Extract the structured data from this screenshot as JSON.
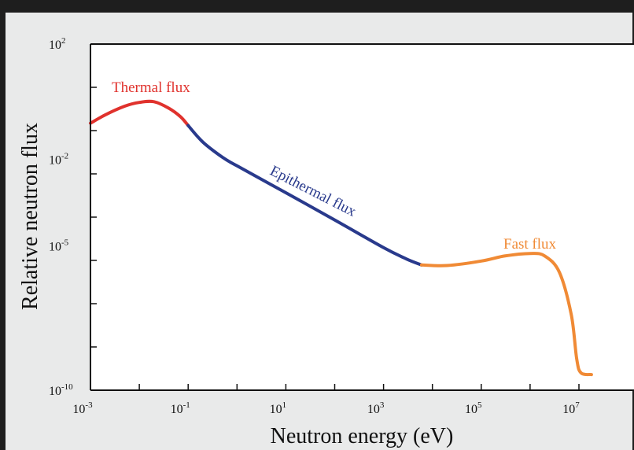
{
  "chart_data": {
    "type": "line",
    "title": "",
    "xlabel": "Neutron energy (eV)",
    "ylabel": "Relative neutron flux",
    "x_scale": "log",
    "y_scale": "log",
    "xlim": [
      0.001,
      30000000
    ],
    "ylim": [
      1e-10,
      100
    ],
    "grid": false,
    "x_ticks": [
      {
        "base": "10",
        "exp": "-3",
        "value": 0.001
      },
      {
        "base": "10",
        "exp": "-1",
        "value": 0.1
      },
      {
        "base": "10",
        "exp": "1",
        "value": 10
      },
      {
        "base": "10",
        "exp": "3",
        "value": 1000
      },
      {
        "base": "10",
        "exp": "5",
        "value": 100000
      },
      {
        "base": "10",
        "exp": "7",
        "value": 10000000
      }
    ],
    "y_ticks": [
      {
        "base": "10",
        "exp": "2",
        "value": 100
      },
      {
        "base": "10",
        "exp": "-2",
        "value": 0.01
      },
      {
        "base": "10",
        "exp": "-5",
        "value": 1e-05
      },
      {
        "base": "10",
        "exp": "-10",
        "value": 1e-10
      }
    ],
    "series": [
      {
        "name": "Thermal flux",
        "color": "#e0322d",
        "points": [
          [
            0.001,
            0.18
          ],
          [
            0.002,
            0.35
          ],
          [
            0.005,
            0.7
          ],
          [
            0.01,
            0.95
          ],
          [
            0.02,
            1.0
          ],
          [
            0.04,
            0.6
          ],
          [
            0.07,
            0.3
          ],
          [
            0.1,
            0.15
          ]
        ]
      },
      {
        "name": "Epithermal flux",
        "color": "#293a8c",
        "points": [
          [
            0.1,
            0.15
          ],
          [
            0.2,
            0.04
          ],
          [
            0.5,
            0.012
          ],
          [
            1,
            0.006
          ],
          [
            10,
            0.0007
          ],
          [
            100,
            8e-05
          ],
          [
            1000,
            8.8e-06
          ],
          [
            3000,
            3.5e-06
          ],
          [
            6000,
            2.2e-06
          ]
        ]
      },
      {
        "name": "Fast flux",
        "color": "#f08a35",
        "points": [
          [
            6000,
            2.2e-06
          ],
          [
            20000,
            2.1e-06
          ],
          [
            100000,
            3e-06
          ],
          [
            300000,
            4.5e-06
          ],
          [
            1000000,
            5.5e-06
          ],
          [
            2000000,
            4.5e-06
          ],
          [
            4000000,
            1.2e-06
          ],
          [
            7000000,
            4e-08
          ],
          [
            9000000,
            1.2e-09
          ],
          [
            11000000,
            4e-10
          ],
          [
            18000000,
            3.5e-10
          ]
        ]
      }
    ],
    "annotations": [
      {
        "text": "Thermal flux",
        "color": "#e0322d"
      },
      {
        "text": "Epithermal flux",
        "color": "#293a8c"
      },
      {
        "text": "Fast flux",
        "color": "#f08a35"
      }
    ]
  }
}
